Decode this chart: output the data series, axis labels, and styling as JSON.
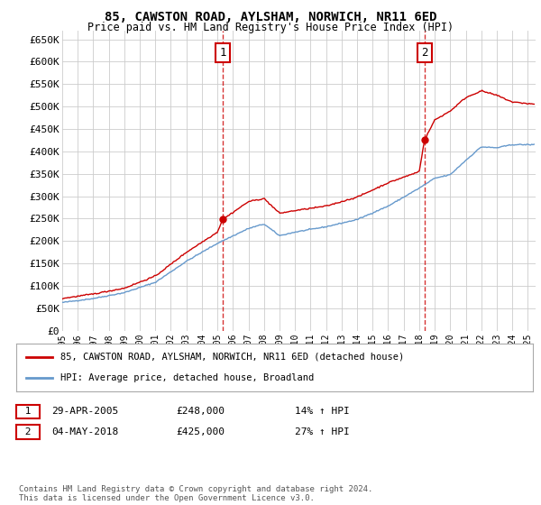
{
  "title": "85, CAWSTON ROAD, AYLSHAM, NORWICH, NR11 6ED",
  "subtitle": "Price paid vs. HM Land Registry's House Price Index (HPI)",
  "ylabel_ticks": [
    "£0",
    "£50K",
    "£100K",
    "£150K",
    "£200K",
    "£250K",
    "£300K",
    "£350K",
    "£400K",
    "£450K",
    "£500K",
    "£550K",
    "£600K",
    "£650K"
  ],
  "ytick_values": [
    0,
    50000,
    100000,
    150000,
    200000,
    250000,
    300000,
    350000,
    400000,
    450000,
    500000,
    550000,
    600000,
    650000
  ],
  "ylim": [
    0,
    670000
  ],
  "xlim_start": 1995.0,
  "xlim_end": 2025.5,
  "legend_line1": "85, CAWSTON ROAD, AYLSHAM, NORWICH, NR11 6ED (detached house)",
  "legend_line2": "HPI: Average price, detached house, Broadland",
  "sale1_date": "29-APR-2005",
  "sale1_price": "£248,000",
  "sale1_hpi": "14% ↑ HPI",
  "sale2_date": "04-MAY-2018",
  "sale2_price": "£425,000",
  "sale2_hpi": "27% ↑ HPI",
  "footer": "Contains HM Land Registry data © Crown copyright and database right 2024.\nThis data is licensed under the Open Government Licence v3.0.",
  "red_color": "#cc0000",
  "blue_color": "#6699cc",
  "sale1_x": 2005.33,
  "sale1_y": 248000,
  "sale2_x": 2018.34,
  "sale2_y": 425000,
  "vline1_x": 2005.33,
  "vline2_x": 2018.34,
  "background_color": "#ffffff",
  "grid_color": "#cccccc"
}
